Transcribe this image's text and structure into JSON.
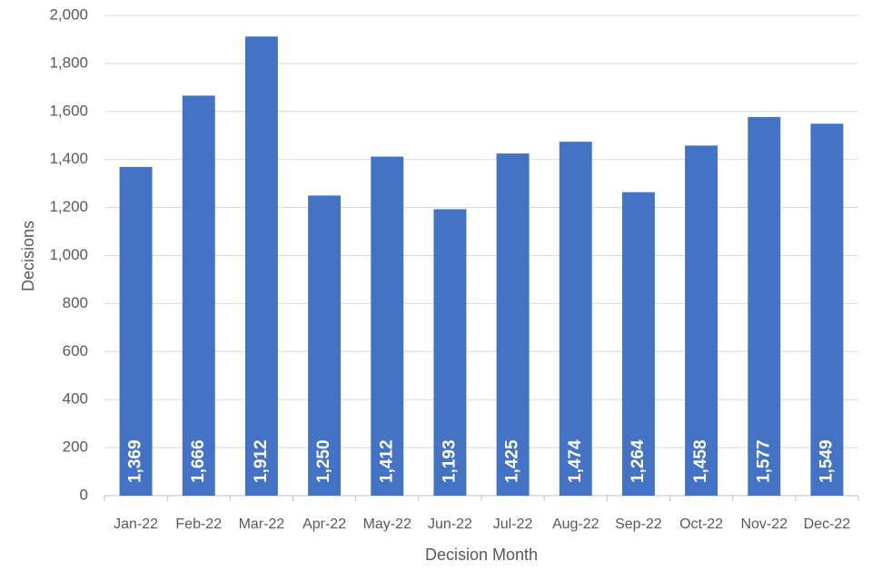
{
  "chart_data": {
    "type": "bar",
    "x_label": "Decision Month",
    "y_label": "Decisions",
    "categories": [
      "Jan-22",
      "Feb-22",
      "Mar-22",
      "Apr-22",
      "May-22",
      "Jun-22",
      "Jul-22",
      "Aug-22",
      "Sep-22",
      "Oct-22",
      "Nov-22",
      "Dec-22"
    ],
    "values": [
      1369,
      1666,
      1912,
      1250,
      1412,
      1193,
      1425,
      1474,
      1264,
      1458,
      1577,
      1549
    ],
    "value_labels": [
      "1,369",
      "1,666",
      "1,912",
      "1,250",
      "1,412",
      "1,193",
      "1,425",
      "1,474",
      "1,264",
      "1,458",
      "1,577",
      "1,549"
    ],
    "color": "#4472c4",
    "ylim": [
      0,
      2000
    ],
    "yticks": [
      0,
      200,
      400,
      600,
      800,
      {
        "value": 1000,
        "label": "1,000"
      },
      {
        "value": 1200,
        "label": "1,200"
      },
      {
        "value": 1400,
        "label": "1,400"
      },
      {
        "value": 1600,
        "label": "1,600"
      },
      {
        "value": 1800,
        "label": "1,800"
      },
      {
        "value": 2000,
        "label": "2,000"
      }
    ],
    "grid": true
  }
}
